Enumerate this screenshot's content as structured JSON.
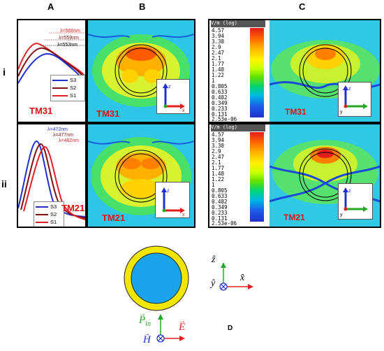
{
  "columns": {
    "a": "A",
    "b": "B",
    "c": "C"
  },
  "rows": {
    "i": "i",
    "ii": "ii"
  },
  "row_i": {
    "spectrum": {
      "peaks": [
        "λ=566nm",
        "λ=559nm",
        "λ=553nm"
      ],
      "legend": [
        "S3",
        "S2",
        "S1"
      ],
      "mode": "TM31"
    },
    "field_b": {
      "mode": "TM31",
      "axes": {
        "vertical": "z",
        "horizontal": "x"
      }
    },
    "field_c": {
      "mode": "TM31",
      "axes": {
        "vertical": "z",
        "horizontal": "y"
      }
    }
  },
  "row_ii": {
    "spectrum": {
      "peaks": [
        "λ=472nm",
        "λ=477nm",
        "λ=482nm"
      ],
      "legend": [
        "S3",
        "S2",
        "S1"
      ],
      "mode": "TM21"
    },
    "field_b": {
      "mode": "TM21",
      "axes": {
        "vertical": "z",
        "horizontal": "x"
      }
    },
    "field_c": {
      "mode": "TM21",
      "axes": {
        "vertical": "z",
        "horizontal": "y"
      }
    }
  },
  "colorscale": {
    "title": "V/m (log)",
    "values": [
      "4.57",
      "3.94",
      "3.38",
      "2.9",
      "2.47",
      "2.1",
      "1.77",
      "1.48",
      "1.22",
      "1",
      "0.805",
      "0.633",
      "0.482",
      "0.349",
      "0.233",
      "0.131",
      "2.53e-06"
    ]
  },
  "colors": {
    "s1": "#e02020",
    "s2": "#801010",
    "s3": "#2030d0",
    "shell": "#f2e600",
    "core": "#19a3e8",
    "axis_z": "#22aa22",
    "axis_x": "#e02020",
    "axis_y": "#2030d0"
  },
  "bottom": {
    "labels": {
      "P": "P",
      "P_sub": "in",
      "H": "H",
      "E": "E",
      "z": "ẑ",
      "x": "x̂",
      "y": "ŷ"
    },
    "panel_letter": "D"
  }
}
